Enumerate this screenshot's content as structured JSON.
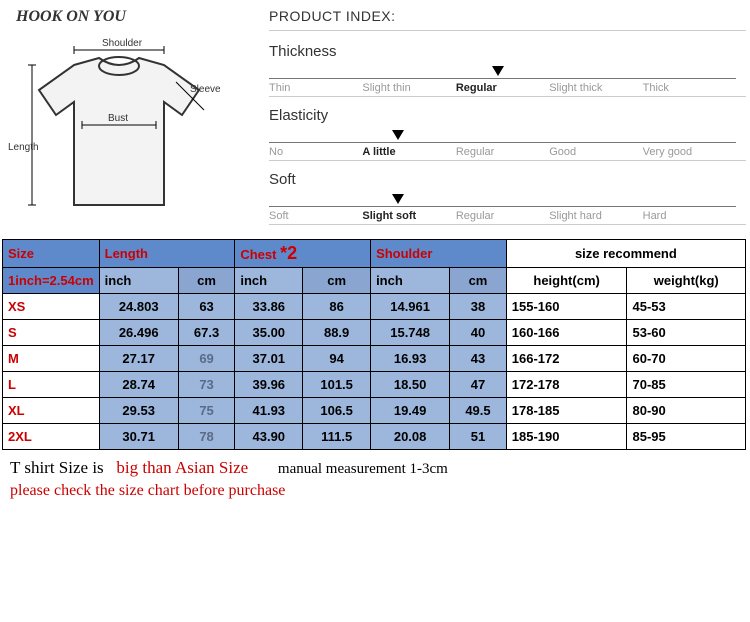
{
  "brand": "HOOK ON YOU",
  "diagram_labels": {
    "shoulder": "Shoulder",
    "bust": "Bust",
    "sleeve": "Sleeve",
    "length": "Length"
  },
  "product_index": {
    "title": "PRODUCT INDEX:",
    "rows": [
      {
        "label": "Thickness",
        "options": [
          "Thin",
          "Slight thin",
          "Regular",
          "Slight thick",
          "Thick"
        ],
        "selected_index": 2,
        "marker_pct": 48
      },
      {
        "label": "Elasticity",
        "options": [
          "No",
          "A little",
          "Regular",
          "Good",
          "Very good"
        ],
        "selected_index": 1,
        "marker_pct": 27
      },
      {
        "label": "Soft",
        "options": [
          "Soft",
          "Slight soft",
          "Regular",
          "Slight hard",
          "Hard"
        ],
        "selected_index": 1,
        "marker_pct": 27
      }
    ]
  },
  "size_table": {
    "headers": {
      "size": "Size",
      "length": "Length",
      "chest": "Chest",
      "chest_mark": "*2",
      "shoulder": "Shoulder",
      "recommend": "size recommend",
      "inch": "inch",
      "cm": "cm",
      "height": "height(cm)",
      "weight": "weight(kg)",
      "note": "1inch=2.54cm"
    },
    "rows": [
      {
        "size": "XS",
        "len_in": "24.803",
        "len_cm": "63",
        "chest_in": "33.86",
        "chest_cm": "86",
        "sh_in": "14.961",
        "sh_cm": "38",
        "height": "155-160",
        "weight": "45-53"
      },
      {
        "size": "S",
        "len_in": "26.496",
        "len_cm": "67.3",
        "chest_in": "35.00",
        "chest_cm": "88.9",
        "sh_in": "15.748",
        "sh_cm": "40",
        "height": "160-166",
        "weight": "53-60"
      },
      {
        "size": "M",
        "len_in": "27.17",
        "len_cm": "69",
        "chest_in": "37.01",
        "chest_cm": "94",
        "sh_in": "16.93",
        "sh_cm": "43",
        "height": "166-172",
        "weight": "60-70"
      },
      {
        "size": "L",
        "len_in": "28.74",
        "len_cm": "73",
        "chest_in": "39.96",
        "chest_cm": "101.5",
        "sh_in": "18.50",
        "sh_cm": "47",
        "height": "172-178",
        "weight": "70-85"
      },
      {
        "size": "XL",
        "len_in": "29.53",
        "len_cm": "75",
        "chest_in": "41.93",
        "chest_cm": "106.5",
        "sh_in": "19.49",
        "sh_cm": "49.5",
        "height": "178-185",
        "weight": "80-90"
      },
      {
        "size": "2XL",
        "len_in": "30.71",
        "len_cm": "78",
        "chest_in": "43.90",
        "chest_cm": "111.5",
        "sh_in": "20.08",
        "sh_cm": "51",
        "height": "185-190",
        "weight": "85-95"
      }
    ]
  },
  "footer": {
    "part1": "T shirt Size is",
    "part2": "big than Asian Size",
    "part3": "manual measurement 1-3cm",
    "line2": "please check the size chart before purchase"
  },
  "colors": {
    "accent_red": "#c00",
    "hdr_blue": "#5e8acc",
    "cell_blue": "#9cb6dc"
  }
}
